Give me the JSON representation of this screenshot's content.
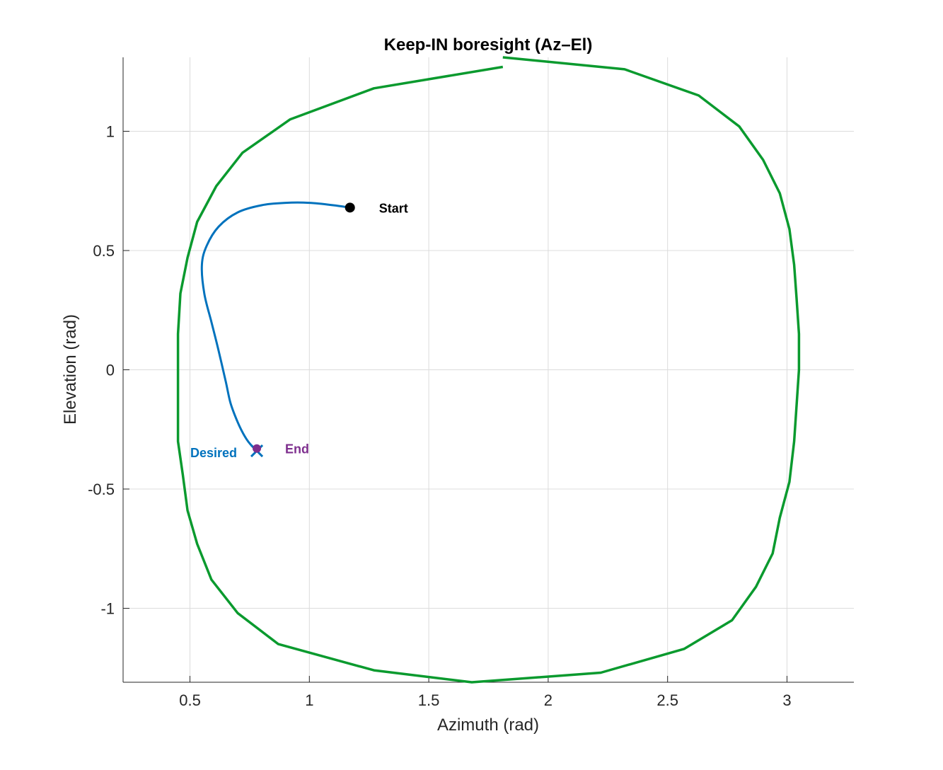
{
  "chart_data": {
    "type": "line",
    "title": "Keep-IN boresight (Az–El)",
    "xlabel": "Azimuth (rad)",
    "ylabel": "Elevation (rad)",
    "xlim": [
      0.22,
      3.28
    ],
    "ylim": [
      -1.31,
      1.31
    ],
    "grid": true,
    "x_ticks": [
      0.5,
      1,
      1.5,
      2,
      2.5,
      3
    ],
    "x_tick_labels": [
      "0.5",
      "1",
      "1.5",
      "2",
      "2.5",
      "3"
    ],
    "y_ticks": [
      -1,
      -0.5,
      0,
      0.5,
      1
    ],
    "y_tick_labels": [
      "-1",
      "-0.5",
      "0",
      "0.5",
      "1"
    ],
    "colors": {
      "keep_in": "#0a9a2e",
      "trajectory": "#0072bd",
      "start": "#000000",
      "desired": "#0072bd",
      "end": "#7e2f8e"
    },
    "keep_in_boundary": {
      "x": [
        1.81,
        2.32,
        2.63,
        2.8,
        2.9,
        2.97,
        3.01,
        3.03,
        3.04,
        3.05,
        3.05,
        3.04,
        3.03,
        3.01,
        2.97,
        2.94,
        2.87,
        2.77,
        2.57,
        2.22,
        1.68,
        1.27,
        0.87,
        0.7,
        0.59,
        0.53,
        0.49,
        0.47,
        0.45,
        0.45,
        0.45,
        0.46,
        0.49,
        0.53,
        0.61,
        0.72,
        0.92,
        1.27,
        1.81
      ],
      "y": [
        1.31,
        1.26,
        1.15,
        1.02,
        0.88,
        0.74,
        0.59,
        0.44,
        0.3,
        0.15,
        0.0,
        -0.15,
        -0.3,
        -0.47,
        -0.62,
        -0.77,
        -0.91,
        -1.05,
        -1.17,
        -1.27,
        -1.31,
        -1.26,
        -1.15,
        -1.02,
        -0.88,
        -0.73,
        -0.59,
        -0.44,
        -0.3,
        0.0,
        0.15,
        0.32,
        0.47,
        0.62,
        0.77,
        0.91,
        1.05,
        1.18,
        1.27
      ]
    },
    "trajectory": {
      "x": [
        1.17,
        1.1,
        1.0,
        0.9,
        0.8,
        0.7,
        0.62,
        0.57,
        0.55,
        0.56,
        0.59,
        0.62,
        0.65,
        0.67,
        0.7,
        0.73,
        0.76,
        0.78
      ],
      "y": [
        0.68,
        0.69,
        0.7,
        0.7,
        0.69,
        0.66,
        0.6,
        0.52,
        0.44,
        0.32,
        0.2,
        0.08,
        -0.05,
        -0.14,
        -0.22,
        -0.28,
        -0.32,
        -0.33
      ]
    },
    "markers": {
      "start": {
        "x": 1.17,
        "y": 0.68,
        "label": "Start"
      },
      "desired": {
        "x": 0.78,
        "y": -0.34,
        "label": "Desired"
      },
      "end": {
        "x": 0.78,
        "y": -0.33,
        "label": "End"
      }
    }
  }
}
